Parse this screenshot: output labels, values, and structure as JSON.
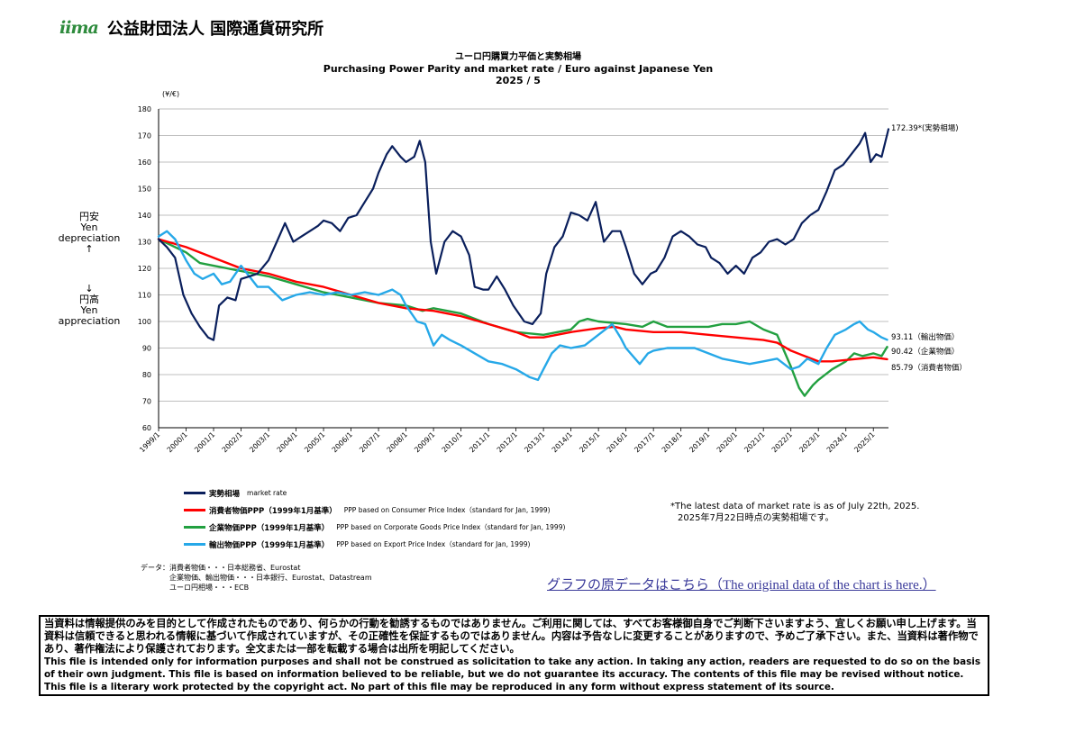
{
  "header": {
    "logo_mark": "iima",
    "org_name": "公益財団法人 国際通貨研究所"
  },
  "titles": {
    "jp": "ユーロ円購買力平価と実勢相場",
    "en": "Purchasing Power Parity and market rate / Euro against Japanese Yen",
    "date": "2025 / 5"
  },
  "side_labels": {
    "upper": [
      "円安",
      "Yen",
      "depreciation",
      "↑"
    ],
    "lower": [
      "↓",
      "円高",
      "Yen",
      "appreciation"
    ]
  },
  "chart_data": {
    "type": "line",
    "ylabel": "(¥/€)",
    "ylim": [
      60,
      180
    ],
    "yticks": [
      60,
      70,
      80,
      90,
      100,
      110,
      120,
      130,
      140,
      150,
      160,
      170,
      180
    ],
    "xlim": [
      1999.0,
      2025.55
    ],
    "xticks": [
      "1999/1",
      "2000/1",
      "2001/1",
      "2002/1",
      "2003/1",
      "2004/1",
      "2005/1",
      "2006/1",
      "2007/1",
      "2008/1",
      "2009/1",
      "2010/1",
      "2011/1",
      "2012/1",
      "2013/1",
      "2014/1",
      "2015/1",
      "2016/1",
      "2017/1",
      "2018/1",
      "2019/1",
      "2020/1",
      "2021/1",
      "2022/1",
      "2023/1",
      "2024/1",
      "2025/1"
    ],
    "grid": true,
    "legend_position": "bottom",
    "series": [
      {
        "name": "消費者物価PPP（1999年1月基準）",
        "legend_en": "PPP based on Consumer Price Index（standard for Jan, 1999)",
        "color": "#ff0000",
        "end_label": "85.79（消費者物価）",
        "points": [
          [
            1999.0,
            131
          ],
          [
            2000.0,
            128
          ],
          [
            2001.0,
            124
          ],
          [
            2002.0,
            120
          ],
          [
            2003.0,
            118
          ],
          [
            2004.0,
            115
          ],
          [
            2005.0,
            113
          ],
          [
            2006.0,
            110
          ],
          [
            2007.0,
            107
          ],
          [
            2008.0,
            105
          ],
          [
            2009.0,
            104
          ],
          [
            2010.0,
            102
          ],
          [
            2011.0,
            99
          ],
          [
            2012.0,
            96
          ],
          [
            2012.5,
            94
          ],
          [
            2013.0,
            94
          ],
          [
            2014.0,
            96
          ],
          [
            2015.0,
            97.5
          ],
          [
            2015.6,
            98
          ],
          [
            2016.0,
            97
          ],
          [
            2017.0,
            96
          ],
          [
            2018.0,
            96
          ],
          [
            2019.0,
            95
          ],
          [
            2020.0,
            94
          ],
          [
            2021.0,
            93
          ],
          [
            2021.5,
            92
          ],
          [
            2022.0,
            89
          ],
          [
            2022.5,
            87
          ],
          [
            2023.0,
            85
          ],
          [
            2023.5,
            85
          ],
          [
            2024.0,
            85.5
          ],
          [
            2024.5,
            86
          ],
          [
            2025.0,
            86.5
          ],
          [
            2025.5,
            85.79
          ]
        ]
      },
      {
        "name": "企業物価PPP（1999年1月基準）",
        "legend_en": "PPP based on Corporate Goods Price Index（standard for Jan, 1999)",
        "color": "#22a040",
        "end_label": "90.42（企業物価）",
        "points": [
          [
            1999.0,
            131
          ],
          [
            2000.0,
            126
          ],
          [
            2000.5,
            122
          ],
          [
            2001.0,
            121
          ],
          [
            2002.0,
            119
          ],
          [
            2003.0,
            117
          ],
          [
            2004.0,
            114
          ],
          [
            2005.0,
            111
          ],
          [
            2006.0,
            109
          ],
          [
            2007.0,
            107
          ],
          [
            2008.0,
            106
          ],
          [
            2008.6,
            104
          ],
          [
            2009.0,
            105
          ],
          [
            2010.0,
            103
          ],
          [
            2011.0,
            99
          ],
          [
            2012.0,
            96
          ],
          [
            2013.0,
            95
          ],
          [
            2014.0,
            97
          ],
          [
            2014.3,
            100
          ],
          [
            2014.6,
            101
          ],
          [
            2015.0,
            100
          ],
          [
            2016.0,
            99
          ],
          [
            2016.6,
            98
          ],
          [
            2017.0,
            100
          ],
          [
            2017.5,
            98
          ],
          [
            2018.0,
            98
          ],
          [
            2019.0,
            98
          ],
          [
            2019.5,
            99
          ],
          [
            2020.0,
            99
          ],
          [
            2020.5,
            100
          ],
          [
            2021.0,
            97
          ],
          [
            2021.5,
            95
          ],
          [
            2022.0,
            83
          ],
          [
            2022.3,
            75
          ],
          [
            2022.5,
            72
          ],
          [
            2022.8,
            76
          ],
          [
            2023.0,
            78
          ],
          [
            2023.5,
            82
          ],
          [
            2024.0,
            85
          ],
          [
            2024.3,
            88
          ],
          [
            2024.6,
            87
          ],
          [
            2025.0,
            88
          ],
          [
            2025.3,
            87
          ],
          [
            2025.5,
            90.42
          ]
        ]
      },
      {
        "name": "輸出物価PPP（1999年1月基準）",
        "legend_en": "PPP based on Export Price Index（standard for Jan, 1999)",
        "color": "#26a8e8",
        "end_label": "93.11（輸出物価）",
        "points": [
          [
            1999.0,
            132
          ],
          [
            1999.3,
            134
          ],
          [
            1999.6,
            131
          ],
          [
            2000.0,
            123
          ],
          [
            2000.3,
            118
          ],
          [
            2000.6,
            116
          ],
          [
            2001.0,
            118
          ],
          [
            2001.3,
            114
          ],
          [
            2001.6,
            115
          ],
          [
            2002.0,
            121
          ],
          [
            2002.3,
            117
          ],
          [
            2002.6,
            113
          ],
          [
            2003.0,
            113
          ],
          [
            2003.5,
            108
          ],
          [
            2004.0,
            110
          ],
          [
            2004.5,
            111
          ],
          [
            2005.0,
            110
          ],
          [
            2005.5,
            111
          ],
          [
            2006.0,
            110
          ],
          [
            2006.5,
            111
          ],
          [
            2007.0,
            110
          ],
          [
            2007.5,
            112
          ],
          [
            2007.8,
            110
          ],
          [
            2008.0,
            106
          ],
          [
            2008.4,
            100
          ],
          [
            2008.7,
            99
          ],
          [
            2009.0,
            91
          ],
          [
            2009.3,
            95
          ],
          [
            2009.6,
            93
          ],
          [
            2010.0,
            91
          ],
          [
            2010.5,
            88
          ],
          [
            2011.0,
            85
          ],
          [
            2011.5,
            84
          ],
          [
            2012.0,
            82
          ],
          [
            2012.5,
            79
          ],
          [
            2012.8,
            78
          ],
          [
            2013.0,
            82
          ],
          [
            2013.3,
            88
          ],
          [
            2013.6,
            91
          ],
          [
            2014.0,
            90
          ],
          [
            2014.5,
            91
          ],
          [
            2015.0,
            95
          ],
          [
            2015.5,
            99
          ],
          [
            2015.8,
            94
          ],
          [
            2016.0,
            90
          ],
          [
            2016.5,
            84
          ],
          [
            2016.8,
            88
          ],
          [
            2017.0,
            89
          ],
          [
            2017.5,
            90
          ],
          [
            2018.0,
            90
          ],
          [
            2018.5,
            90
          ],
          [
            2019.0,
            88
          ],
          [
            2019.5,
            86
          ],
          [
            2020.0,
            85
          ],
          [
            2020.5,
            84
          ],
          [
            2021.0,
            85
          ],
          [
            2021.5,
            86
          ],
          [
            2022.0,
            82
          ],
          [
            2022.3,
            83
          ],
          [
            2022.6,
            86
          ],
          [
            2023.0,
            84
          ],
          [
            2023.3,
            90
          ],
          [
            2023.6,
            95
          ],
          [
            2024.0,
            97
          ],
          [
            2024.3,
            99
          ],
          [
            2024.5,
            100
          ],
          [
            2024.8,
            97
          ],
          [
            2025.0,
            96
          ],
          [
            2025.3,
            94
          ],
          [
            2025.5,
            93.11
          ]
        ]
      },
      {
        "name": "実勢相場",
        "legend_en": "market rate",
        "color": "#0a1f5c",
        "end_label": "172.39*(実勢相場)",
        "points": [
          [
            1999.0,
            131
          ],
          [
            1999.3,
            128
          ],
          [
            1999.6,
            124
          ],
          [
            1999.9,
            110
          ],
          [
            2000.2,
            103
          ],
          [
            2000.5,
            98
          ],
          [
            2000.8,
            94
          ],
          [
            2001.0,
            93
          ],
          [
            2001.2,
            106
          ],
          [
            2001.5,
            109
          ],
          [
            2001.8,
            108
          ],
          [
            2002.0,
            116
          ],
          [
            2002.3,
            117
          ],
          [
            2002.6,
            118
          ],
          [
            2003.0,
            123
          ],
          [
            2003.3,
            130
          ],
          [
            2003.6,
            137
          ],
          [
            2003.9,
            130
          ],
          [
            2004.2,
            132
          ],
          [
            2004.5,
            134
          ],
          [
            2004.8,
            136
          ],
          [
            2005.0,
            138
          ],
          [
            2005.3,
            137
          ],
          [
            2005.6,
            134
          ],
          [
            2005.9,
            139
          ],
          [
            2006.2,
            140
          ],
          [
            2006.5,
            145
          ],
          [
            2006.8,
            150
          ],
          [
            2007.0,
            156
          ],
          [
            2007.3,
            163
          ],
          [
            2007.5,
            166
          ],
          [
            2007.8,
            162
          ],
          [
            2008.0,
            160
          ],
          [
            2008.3,
            162
          ],
          [
            2008.5,
            168
          ],
          [
            2008.7,
            160
          ],
          [
            2008.9,
            130
          ],
          [
            2009.1,
            118
          ],
          [
            2009.4,
            130
          ],
          [
            2009.7,
            134
          ],
          [
            2010.0,
            132
          ],
          [
            2010.3,
            125
          ],
          [
            2010.5,
            113
          ],
          [
            2010.8,
            112
          ],
          [
            2011.0,
            112
          ],
          [
            2011.3,
            117
          ],
          [
            2011.6,
            112
          ],
          [
            2011.9,
            106
          ],
          [
            2012.1,
            103
          ],
          [
            2012.3,
            100
          ],
          [
            2012.6,
            99
          ],
          [
            2012.9,
            103
          ],
          [
            2013.1,
            118
          ],
          [
            2013.4,
            128
          ],
          [
            2013.7,
            132
          ],
          [
            2014.0,
            141
          ],
          [
            2014.3,
            140
          ],
          [
            2014.6,
            138
          ],
          [
            2014.9,
            145
          ],
          [
            2015.0,
            140
          ],
          [
            2015.2,
            130
          ],
          [
            2015.5,
            134
          ],
          [
            2015.8,
            134
          ],
          [
            2016.0,
            128
          ],
          [
            2016.3,
            118
          ],
          [
            2016.6,
            114
          ],
          [
            2016.9,
            118
          ],
          [
            2017.1,
            119
          ],
          [
            2017.4,
            124
          ],
          [
            2017.7,
            132
          ],
          [
            2018.0,
            134
          ],
          [
            2018.3,
            132
          ],
          [
            2018.6,
            129
          ],
          [
            2018.9,
            128
          ],
          [
            2019.1,
            124
          ],
          [
            2019.4,
            122
          ],
          [
            2019.7,
            118
          ],
          [
            2020.0,
            121
          ],
          [
            2020.3,
            118
          ],
          [
            2020.6,
            124
          ],
          [
            2020.9,
            126
          ],
          [
            2021.2,
            130
          ],
          [
            2021.5,
            131
          ],
          [
            2021.8,
            129
          ],
          [
            2022.1,
            131
          ],
          [
            2022.4,
            137
          ],
          [
            2022.7,
            140
          ],
          [
            2023.0,
            142
          ],
          [
            2023.3,
            149
          ],
          [
            2023.6,
            157
          ],
          [
            2023.9,
            159
          ],
          [
            2024.2,
            163
          ],
          [
            2024.5,
            167
          ],
          [
            2024.7,
            171
          ],
          [
            2024.9,
            160
          ],
          [
            2025.1,
            163
          ],
          [
            2025.3,
            162
          ],
          [
            2025.55,
            172.39
          ]
        ]
      }
    ]
  },
  "legend_order": [
    3,
    0,
    1,
    2
  ],
  "note": {
    "line1": "*The latest data of market rate is as of July 22th, 2025.",
    "line2": "2025年7月22日時点の実勢相場です。"
  },
  "sources": "データ：消費者物価・・・日本総務省、Eurostat\n　　　　企業物価、輸出物価・・・日本銀行、Eurostat、Datastream\n　　　　ユーロ円相場・・・ECB",
  "data_link": "グラフの原データはこちら（The original data of the chart is here.）",
  "disclaimer": {
    "jp": "当資料は情報提供のみを目的として作成されたものであり、何らかの行動を勧誘するものではありません。ご利用に関しては、すべてお客様御自身でご判断下さいますよう、宜しくお願い申し上げます。当資料は信頼できると思われる情報に基づいて作成されていますが、その正確性を保証するものではありません。内容は予告なしに変更することがありますので、予めご了承下さい。また、当資料は著作物であり、著作権法により保護されております。全文または一部を転載する場合は出所を明記してください。",
    "en": "This file is intended only for information purposes and shall not be construed as solicitation to take any action. In taking any action, readers are requested to do so on the basis of their own judgment. This file is based on information believed to be reliable, but we do not guarantee its accuracy. The contents of this file may be revised without notice. This file is a literary work protected by the copyright act. No part of this file may be reproduced in any form without express statement of its source."
  }
}
